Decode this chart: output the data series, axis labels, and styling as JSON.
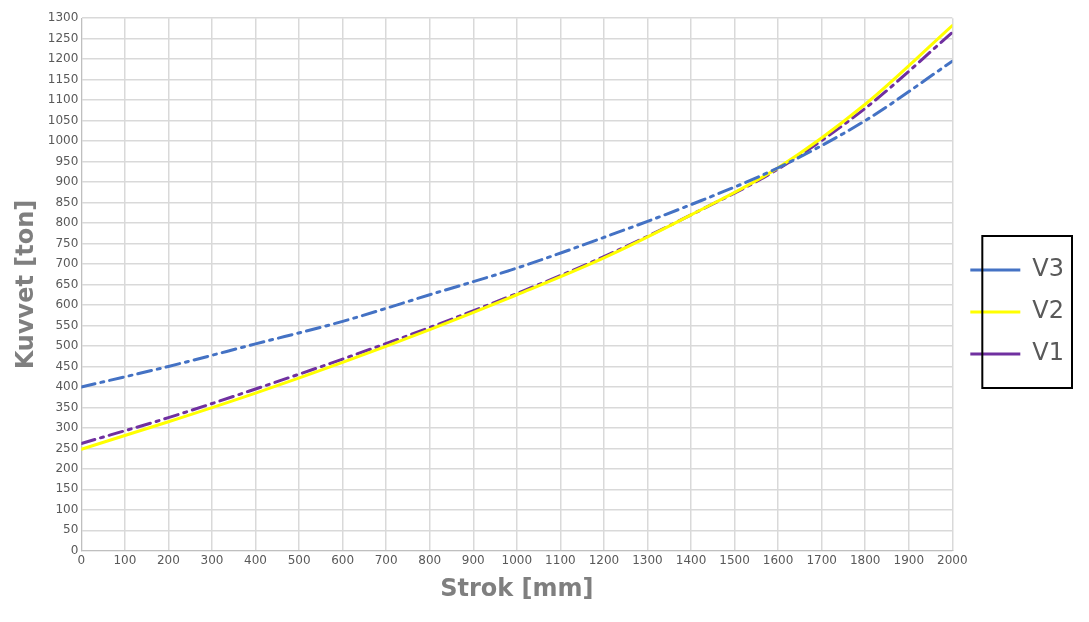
{
  "chart_data": {
    "type": "line",
    "xlabel": "Strok [mm]",
    "ylabel": "Kuvvet [ton]",
    "x": [
      0,
      200,
      400,
      600,
      800,
      1000,
      1200,
      1400,
      1600,
      1800,
      2000
    ],
    "series": [
      {
        "name": "V3",
        "color": "#4472c4",
        "line_style": "dashed",
        "values": [
          400,
          450,
          505,
          560,
          625,
          690,
          765,
          845,
          935,
          1050,
          1195
        ]
      },
      {
        "name": "V2",
        "color": "#ffff00",
        "line_style": "solid",
        "values": [
          248,
          315,
          385,
          460,
          540,
          625,
          715,
          820,
          935,
          1090,
          1282
        ]
      },
      {
        "name": "V1",
        "color": "#7030a0",
        "line_style": "dashed",
        "values": [
          262,
          325,
          395,
          468,
          545,
          628,
          718,
          820,
          932,
          1080,
          1265
        ]
      }
    ],
    "xlim": [
      0,
      2000
    ],
    "xticks": [
      0,
      100,
      200,
      300,
      400,
      500,
      600,
      700,
      800,
      900,
      1000,
      1100,
      1200,
      1300,
      1400,
      1500,
      1600,
      1700,
      1800,
      1900,
      2000
    ],
    "ylim": [
      0,
      1300
    ],
    "yticks": [
      0,
      50,
      100,
      150,
      200,
      250,
      300,
      350,
      400,
      450,
      500,
      550,
      600,
      650,
      700,
      750,
      800,
      850,
      900,
      950,
      1000,
      1050,
      1100,
      1150,
      1200,
      1250,
      1300
    ],
    "grid": true,
    "legend": "right",
    "marker": "none"
  }
}
